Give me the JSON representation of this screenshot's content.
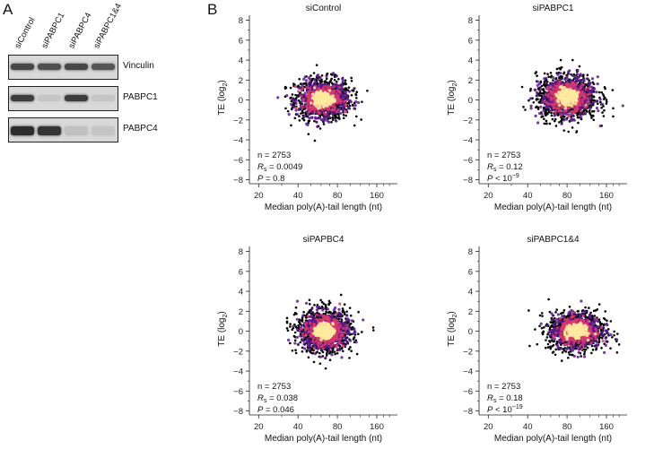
{
  "panel_a": {
    "letter": "A",
    "lanes": [
      "siControl",
      "siPABPC1",
      "siPABPC4",
      "siPABPC1&4"
    ],
    "blots": [
      {
        "name": "Vinculin",
        "intensity": [
          0.8,
          0.75,
          0.8,
          0.72
        ]
      },
      {
        "name": "PABPC1",
        "intensity": [
          0.85,
          0.1,
          0.85,
          0.1
        ]
      },
      {
        "name": "PABPC4",
        "intensity": [
          0.95,
          0.9,
          0.12,
          0.1
        ]
      }
    ]
  },
  "panel_b": {
    "letter": "B"
  },
  "colors": {
    "scatter_outer": "#000000",
    "density_low": "#5a1a8c",
    "density_mid": "#d6386e",
    "density_high": "#ffeaa0"
  },
  "chart_data": [
    {
      "type": "scatter",
      "title": "siControl",
      "xlabel": "Median poly(A)-tail length (nt)",
      "ylabel": "TE (log2)",
      "x_scale": "log",
      "xlim": [
        17,
        230
      ],
      "ylim": [
        -8.4,
        8.5
      ],
      "x_ticks": [
        20,
        40,
        80,
        160
      ],
      "y_ticks": [
        8,
        6,
        4,
        2,
        0,
        -2,
        -4,
        -6,
        -8
      ],
      "n": "n = 2753",
      "rs": "= 0.0049",
      "p": "= 0.8",
      "center_x": 62,
      "center_y": 0.1,
      "x_range": [
        32,
        190
      ],
      "y_range": [
        -4.4,
        3.5
      ]
    },
    {
      "type": "scatter",
      "title": "siPABPC1",
      "xlabel": "Median poly(A)-tail length (nt)",
      "ylabel": "TE (log2)",
      "x_scale": "log",
      "xlim": [
        17,
        230
      ],
      "ylim": [
        -8.4,
        8.5
      ],
      "x_ticks": [
        20,
        40,
        80,
        160
      ],
      "y_ticks": [
        8,
        6,
        4,
        2,
        0,
        -2,
        -4,
        -6,
        -8
      ],
      "n": "n = 2753",
      "rs": "= 0.12",
      "p": "< 10",
      "p_exp": "−9",
      "center_x": 80,
      "center_y": 0.3,
      "x_range": [
        26,
        180
      ],
      "y_range": [
        -4.6,
        4.0
      ]
    },
    {
      "type": "scatter",
      "title": "siPAPBC4",
      "xlabel": "Median poly(A)-tail length (nt)",
      "ylabel": "TE (log2)",
      "x_scale": "log",
      "xlim": [
        17,
        230
      ],
      "ylim": [
        -8.4,
        8.5
      ],
      "x_ticks": [
        20,
        40,
        80,
        160
      ],
      "y_ticks": [
        8,
        6,
        4,
        2,
        0,
        -2,
        -4,
        -6,
        -8
      ],
      "n": "n = 2753",
      "rs": "= 0.038",
      "p": "= 0.046",
      "center_x": 64,
      "center_y": 0.0,
      "x_range": [
        33,
        185
      ],
      "y_range": [
        -4.2,
        4.2
      ]
    },
    {
      "type": "scatter",
      "title": "siPABPC1&4",
      "xlabel": "Median poly(A)-tail length (nt)",
      "ylabel": "TE (log2)",
      "x_scale": "log",
      "xlim": [
        17,
        230
      ],
      "ylim": [
        -8.4,
        8.5
      ],
      "x_ticks": [
        20,
        40,
        80,
        160
      ],
      "y_ticks": [
        8,
        6,
        4,
        2,
        0,
        -2,
        -4,
        -6,
        -8
      ],
      "n": "n = 2753",
      "rs": "= 0.18",
      "p": "< 10",
      "p_exp": "−19",
      "center_x": 95,
      "center_y": 0.0,
      "x_range": [
        33,
        200
      ],
      "y_range": [
        -4.3,
        3.2
      ]
    }
  ],
  "text": {
    "rs_symbol": "R",
    "rs_sub": "s",
    "p_symbol": "P",
    "ylabel_main": "TE (log",
    "ylabel_sub": "2",
    "ylabel_end": ")"
  }
}
